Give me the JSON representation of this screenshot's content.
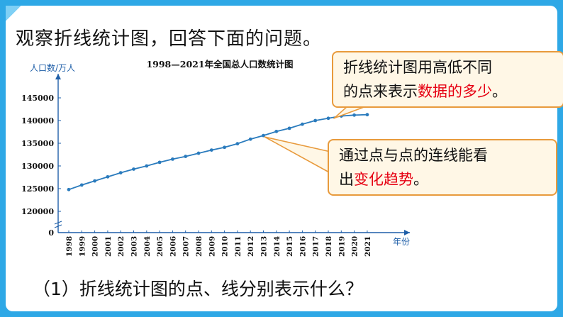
{
  "page": {
    "title": "观察折线统计图，回答下面的问题。",
    "question": "（1）折线统计图的点、线分别表示什么？"
  },
  "callout1": {
    "line1": "折线统计图用高低不同",
    "line2_pre": "的点来表示",
    "line2_hl": "数据的多少",
    "line2_post": "。"
  },
  "callout2": {
    "line1": "通过点与点的连线能看",
    "line2_pre": "出",
    "line2_hl": "变化趋势",
    "line2_post": "。"
  },
  "colors": {
    "line": "#2a7bbd",
    "highlight": "#e60012",
    "callout_border": "#e89a3c",
    "callout_fill": "#fff7e6"
  },
  "chart_data": {
    "type": "line",
    "title": "1998—2021年全国总人口数统计图",
    "ylabel": "人口数/万人",
    "xlabel": "年份",
    "ylim": [
      120000,
      145000
    ],
    "y_ticks": [
      "145000",
      "140000",
      "135000",
      "130000",
      "125000",
      "120000",
      "0"
    ],
    "y_axis_break": true,
    "grid": false,
    "x": [
      "1998",
      "1999",
      "2000",
      "2001",
      "2002",
      "2003",
      "2004",
      "2005",
      "2006",
      "2007",
      "2008",
      "2009",
      "2010",
      "2011",
      "2012",
      "2013",
      "2014",
      "2015",
      "2016",
      "2017",
      "2018",
      "2019",
      "2020",
      "2021"
    ],
    "series": [
      {
        "values": [
          124800,
          125800,
          126700,
          127600,
          128500,
          129300,
          130000,
          130800,
          131500,
          132100,
          132800,
          133500,
          134100,
          134900,
          135900,
          136700,
          137600,
          138300,
          139200,
          140000,
          140500,
          141000,
          141200,
          141300
        ]
      }
    ]
  }
}
